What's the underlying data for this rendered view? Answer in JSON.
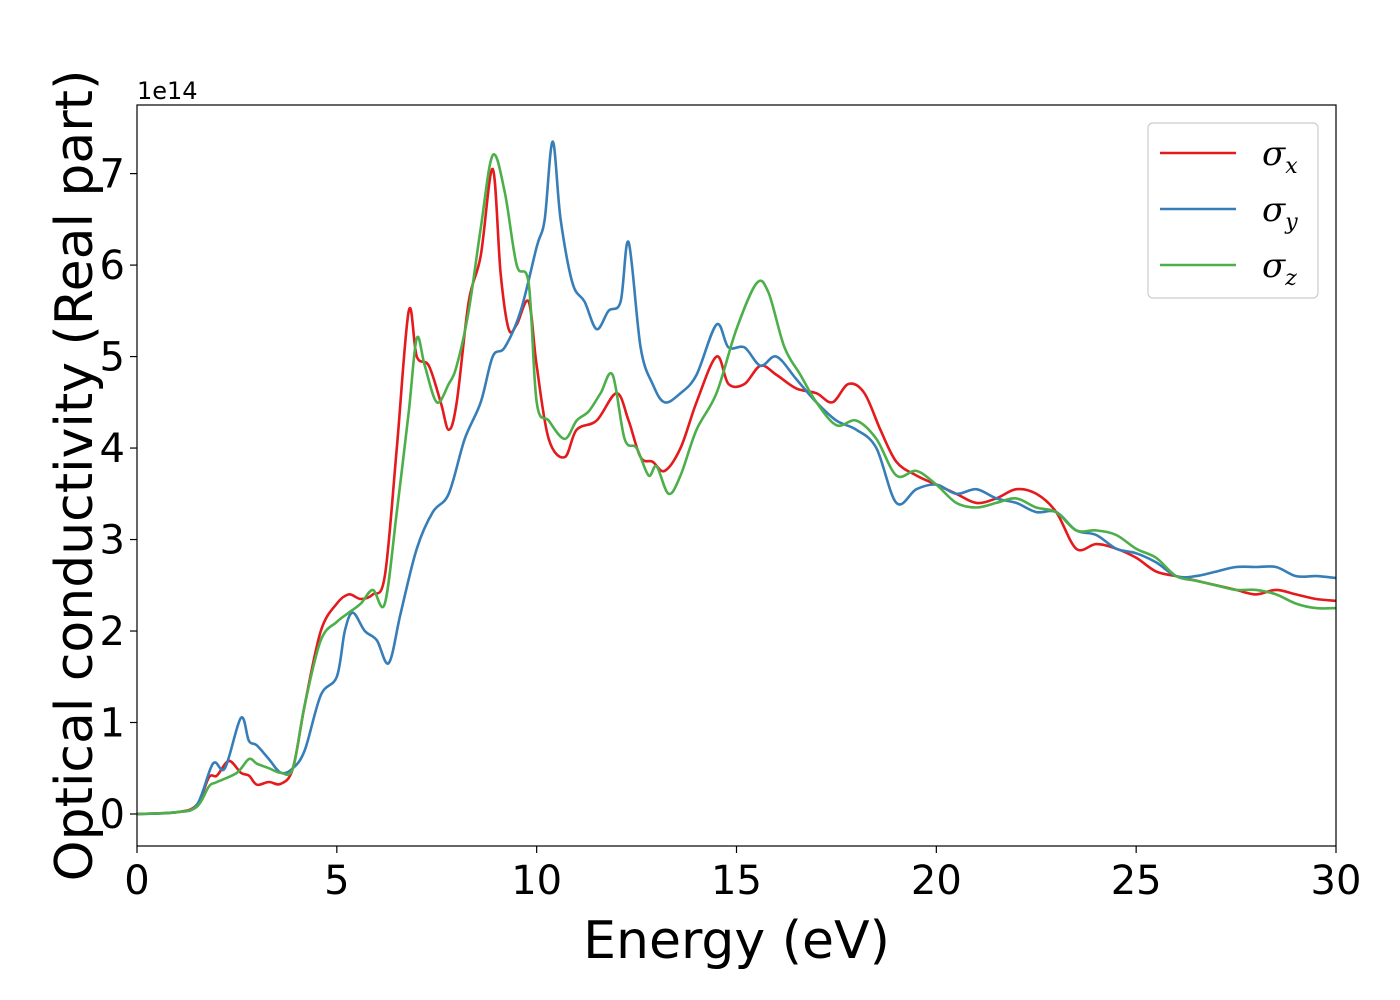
{
  "chart_data": {
    "type": "line",
    "xlabel": "Energy (eV)",
    "ylabel": "Optical conductivity (Real part)",
    "y_offset_label": "1e14",
    "xlim": [
      0,
      30
    ],
    "ylim": [
      -0.35,
      7.75
    ],
    "xticks": [
      0,
      5,
      10,
      15,
      20,
      25,
      30
    ],
    "yticks": [
      0,
      1,
      2,
      3,
      4,
      5,
      6,
      7
    ],
    "grid": false,
    "legend_position": "top-right",
    "series": [
      {
        "name": "σx",
        "symbol": "σ",
        "subscript": "x",
        "color": "#e41a1c",
        "x": [
          0,
          1,
          1.5,
          1.8,
          2.0,
          2.3,
          2.6,
          2.8,
          3.0,
          3.3,
          3.6,
          3.9,
          4.2,
          4.6,
          5.0,
          5.3,
          5.6,
          5.9,
          6.2,
          6.5,
          6.8,
          7.0,
          7.3,
          7.6,
          7.8,
          8.0,
          8.3,
          8.6,
          8.9,
          9.1,
          9.3,
          9.5,
          9.8,
          10.0,
          10.3,
          10.7,
          11.0,
          11.5,
          12.0,
          12.3,
          12.6,
          12.9,
          13.2,
          13.6,
          14.0,
          14.5,
          14.8,
          15.2,
          15.6,
          16.0,
          16.5,
          17.0,
          17.4,
          17.8,
          18.2,
          18.6,
          19.0,
          19.5,
          20.0,
          20.5,
          21.0,
          21.5,
          22.0,
          22.5,
          23.0,
          23.5,
          24.0,
          24.5,
          25.0,
          25.5,
          26.0,
          26.5,
          27.0,
          27.5,
          28.0,
          28.5,
          29.0,
          29.5,
          30.0
        ],
        "values": [
          0,
          0.02,
          0.1,
          0.4,
          0.42,
          0.58,
          0.45,
          0.42,
          0.32,
          0.35,
          0.33,
          0.5,
          1.2,
          2.0,
          2.3,
          2.4,
          2.35,
          2.4,
          2.6,
          4.0,
          5.5,
          5.0,
          4.9,
          4.5,
          4.2,
          4.5,
          5.6,
          6.1,
          7.05,
          5.9,
          5.3,
          5.35,
          5.6,
          4.9,
          4.1,
          3.9,
          4.2,
          4.3,
          4.6,
          4.3,
          3.9,
          3.85,
          3.75,
          4.0,
          4.5,
          5.0,
          4.7,
          4.7,
          4.9,
          4.8,
          4.65,
          4.6,
          4.5,
          4.7,
          4.6,
          4.2,
          3.85,
          3.7,
          3.6,
          3.5,
          3.4,
          3.45,
          3.55,
          3.5,
          3.3,
          2.9,
          2.95,
          2.9,
          2.8,
          2.65,
          2.6,
          2.55,
          2.5,
          2.45,
          2.4,
          2.45,
          2.4,
          2.35,
          2.33
        ]
      },
      {
        "name": "σy",
        "symbol": "σ",
        "subscript": "y",
        "color": "#377eb8",
        "x": [
          0,
          1,
          1.5,
          1.9,
          2.2,
          2.6,
          2.8,
          3.0,
          3.3,
          3.6,
          3.9,
          4.2,
          4.6,
          5.0,
          5.2,
          5.4,
          5.7,
          6.0,
          6.3,
          6.6,
          7.0,
          7.4,
          7.8,
          8.2,
          8.6,
          8.9,
          9.2,
          9.6,
          10.0,
          10.2,
          10.4,
          10.6,
          10.9,
          11.2,
          11.5,
          11.8,
          12.1,
          12.3,
          12.6,
          12.9,
          13.2,
          13.6,
          14.0,
          14.5,
          14.8,
          15.2,
          15.6,
          16.0,
          16.5,
          17.0,
          17.5,
          18.0,
          18.5,
          19.0,
          19.5,
          20.0,
          20.5,
          21.0,
          21.5,
          22.0,
          22.5,
          23.0,
          23.5,
          24.0,
          24.5,
          25.0,
          25.5,
          26.0,
          26.5,
          27.0,
          27.5,
          28.0,
          28.5,
          29.0,
          29.5,
          30.0
        ],
        "values": [
          0,
          0.02,
          0.1,
          0.55,
          0.5,
          1.05,
          0.8,
          0.75,
          0.6,
          0.45,
          0.5,
          0.7,
          1.3,
          1.5,
          2.0,
          2.2,
          2.0,
          1.9,
          1.65,
          2.2,
          2.9,
          3.3,
          3.5,
          4.1,
          4.5,
          5.0,
          5.1,
          5.5,
          6.2,
          6.5,
          7.35,
          6.5,
          5.8,
          5.6,
          5.3,
          5.5,
          5.6,
          6.25,
          5.1,
          4.7,
          4.5,
          4.6,
          4.8,
          5.35,
          5.1,
          5.1,
          4.9,
          5.0,
          4.75,
          4.5,
          4.3,
          4.2,
          4.0,
          3.4,
          3.55,
          3.6,
          3.5,
          3.55,
          3.45,
          3.4,
          3.3,
          3.3,
          3.1,
          3.05,
          2.9,
          2.85,
          2.75,
          2.6,
          2.6,
          2.65,
          2.7,
          2.7,
          2.7,
          2.6,
          2.6,
          2.58
        ]
      },
      {
        "name": "σz",
        "symbol": "σ",
        "subscript": "z",
        "color": "#4daf4a",
        "x": [
          0,
          1,
          1.5,
          1.8,
          2.0,
          2.5,
          2.8,
          3.0,
          3.3,
          3.6,
          3.9,
          4.2,
          4.6,
          5.0,
          5.3,
          5.6,
          5.9,
          6.2,
          6.5,
          6.8,
          7.0,
          7.2,
          7.5,
          7.8,
          8.0,
          8.3,
          8.6,
          8.9,
          9.2,
          9.5,
          9.8,
          10.0,
          10.3,
          10.7,
          11.0,
          11.3,
          11.6,
          11.9,
          12.2,
          12.5,
          12.8,
          13.0,
          13.3,
          13.6,
          14.0,
          14.5,
          15.0,
          15.5,
          15.8,
          16.2,
          16.6,
          17.0,
          17.5,
          18.0,
          18.5,
          19.0,
          19.5,
          20.0,
          20.5,
          21.0,
          21.5,
          22.0,
          22.5,
          23.0,
          23.5,
          24.0,
          24.5,
          25.0,
          25.5,
          26.0,
          26.5,
          27.0,
          27.5,
          28.0,
          28.5,
          29.0,
          29.5,
          30.0
        ],
        "values": [
          0,
          0.02,
          0.08,
          0.3,
          0.35,
          0.45,
          0.6,
          0.55,
          0.5,
          0.45,
          0.5,
          1.2,
          1.9,
          2.1,
          2.2,
          2.3,
          2.45,
          2.3,
          3.3,
          4.4,
          5.2,
          4.9,
          4.5,
          4.7,
          4.9,
          5.5,
          6.4,
          7.2,
          6.8,
          6.0,
          5.8,
          4.5,
          4.3,
          4.1,
          4.3,
          4.4,
          4.6,
          4.8,
          4.1,
          4.0,
          3.7,
          3.8,
          3.5,
          3.7,
          4.2,
          4.6,
          5.3,
          5.8,
          5.7,
          5.1,
          4.8,
          4.5,
          4.25,
          4.3,
          4.1,
          3.7,
          3.75,
          3.6,
          3.4,
          3.35,
          3.4,
          3.45,
          3.35,
          3.3,
          3.1,
          3.1,
          3.05,
          2.9,
          2.8,
          2.6,
          2.55,
          2.5,
          2.45,
          2.45,
          2.4,
          2.3,
          2.25,
          2.25
        ]
      }
    ]
  }
}
